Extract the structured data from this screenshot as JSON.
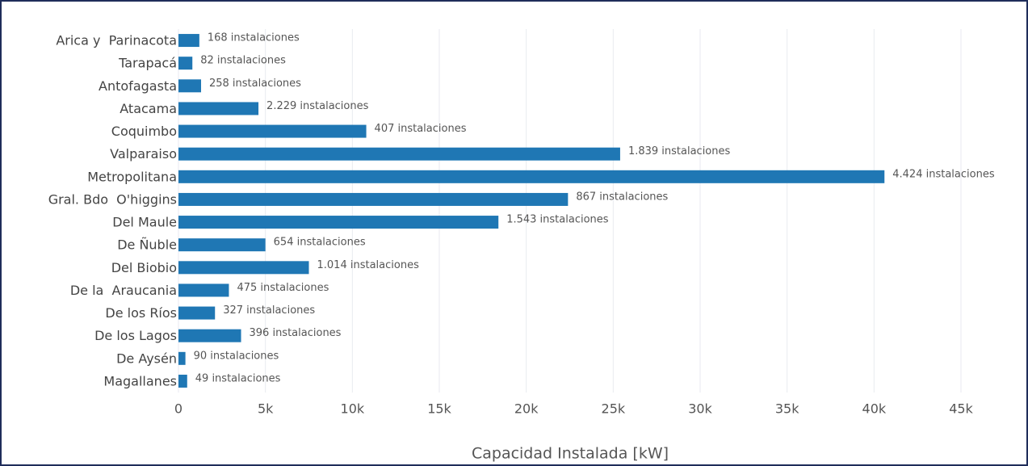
{
  "chart_data": {
    "type": "bar",
    "orientation": "horizontal",
    "categories": [
      "Arica y  Parinacota",
      "Tarapacá",
      "Antofagasta",
      "Atacama",
      "Coquimbo",
      "Valparaiso",
      "Metropolitana",
      "Gral. Bdo  O'higgins",
      "Del Maule",
      "De Ñuble",
      "Del Biobio",
      "De la  Araucania",
      "De los Ríos",
      "De los Lagos",
      "De Aysén",
      "Magallanes"
    ],
    "values": [
      1200,
      800,
      1300,
      4600,
      10800,
      25400,
      40600,
      22400,
      18400,
      5000,
      7500,
      2900,
      2100,
      3600,
      400,
      500
    ],
    "annotations": [
      "168 instalaciones",
      "82 instalaciones",
      "258 instalaciones",
      "2.229 instalaciones",
      "407 instalaciones",
      "1.839 instalaciones",
      "4.424 instalaciones",
      "867 instalaciones",
      "1.543 instalaciones",
      "654 instalaciones",
      "1.014 instalaciones",
      "475 instalaciones",
      "327 instalaciones",
      "396 instalaciones",
      "90 instalaciones",
      "49 instalaciones"
    ],
    "color": "#1f77b4",
    "xlabel": "Capacidad Instalada [kW]",
    "xlim": [
      0,
      45000
    ],
    "xticks": [
      0,
      {
        "value": 5000,
        "label": "5k"
      },
      {
        "value": 10000,
        "label": "10k"
      },
      {
        "value": 15000,
        "label": "15k"
      },
      {
        "value": 20000,
        "label": "20k"
      },
      {
        "value": 25000,
        "label": "25k"
      },
      {
        "value": 30000,
        "label": "30k"
      },
      {
        "value": 35000,
        "label": "35k"
      },
      {
        "value": 40000,
        "label": "40k"
      },
      {
        "value": 45000,
        "label": "45k"
      }
    ],
    "grid": true
  }
}
